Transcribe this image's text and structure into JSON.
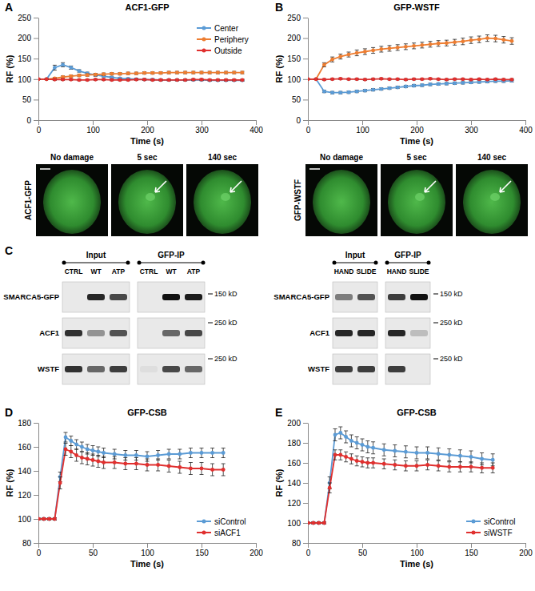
{
  "chart_data": [
    {
      "type": "line",
      "title": "ACF1-GFP",
      "x_label": "Time (s)",
      "y_label": "RF (%)",
      "x": [
        0,
        15,
        30,
        45,
        60,
        75,
        90,
        105,
        120,
        135,
        150,
        165,
        180,
        195,
        210,
        225,
        240,
        255,
        270,
        285,
        300,
        315,
        330,
        345,
        360,
        375
      ],
      "xlim": [
        0,
        400
      ],
      "xticks": [
        0,
        100,
        200,
        300,
        400
      ],
      "ylim": [
        0,
        250
      ],
      "yticks": [
        0,
        50,
        100,
        150,
        200,
        250
      ],
      "legend": "top-right",
      "series": [
        {
          "name": "Center",
          "color": "#5b9bd5",
          "marker": "circle",
          "values": [
            100,
            100,
            128,
            135,
            128,
            120,
            114,
            110,
            107,
            104,
            102,
            101,
            100,
            99,
            99,
            98,
            98,
            98,
            98,
            98,
            98,
            97,
            97,
            97,
            97,
            97
          ],
          "errors": [
            1,
            1,
            6,
            5,
            4,
            3,
            3,
            3,
            2,
            2,
            2,
            2,
            2,
            2,
            2,
            2,
            2,
            2,
            2,
            2,
            2,
            2,
            2,
            2,
            2,
            2
          ]
        },
        {
          "name": "Periphery",
          "color": "#ed7d31",
          "marker": "circle",
          "values": [
            100,
            100,
            102,
            105,
            107,
            109,
            110,
            111,
            112,
            113,
            113,
            114,
            114,
            115,
            115,
            115,
            116,
            116,
            116,
            116,
            116,
            116,
            116,
            116,
            116,
            116
          ],
          "errors": [
            1,
            1,
            2,
            3,
            3,
            3,
            3,
            3,
            3,
            3,
            3,
            3,
            3,
            3,
            3,
            3,
            3,
            3,
            3,
            3,
            3,
            3,
            3,
            3,
            3,
            3
          ]
        },
        {
          "name": "Outside",
          "color": "#e0302f",
          "marker": "circle",
          "values": [
            100,
            100,
            99,
            99,
            99,
            98,
            98,
            99,
            99,
            98,
            98,
            98,
            99,
            99,
            98,
            98,
            98,
            98,
            98,
            99,
            99,
            98,
            98,
            98,
            98,
            98
          ],
          "errors": [
            1,
            1,
            2,
            2,
            2,
            2,
            2,
            2,
            2,
            2,
            2,
            2,
            2,
            2,
            2,
            2,
            2,
            2,
            2,
            2,
            2,
            2,
            2,
            2,
            2,
            2
          ]
        }
      ]
    },
    {
      "type": "line",
      "title": "GFP-WSTF",
      "x_label": "Time (s)",
      "y_label": "RF (%)",
      "x": [
        0,
        15,
        30,
        45,
        60,
        75,
        90,
        105,
        120,
        135,
        150,
        165,
        180,
        195,
        210,
        225,
        240,
        255,
        270,
        285,
        300,
        315,
        330,
        345,
        360,
        375
      ],
      "xlim": [
        0,
        400
      ],
      "xticks": [
        0,
        100,
        200,
        300,
        400
      ],
      "ylim": [
        0,
        250
      ],
      "yticks": [
        0,
        50,
        100,
        150,
        200,
        250
      ],
      "series": [
        {
          "color": "#5b9bd5",
          "marker": "circle",
          "values": [
            100,
            100,
            70,
            67,
            67,
            68,
            70,
            72,
            74,
            76,
            78,
            80,
            82,
            84,
            85,
            87,
            88,
            89,
            90,
            91,
            92,
            93,
            94,
            95,
            95,
            96
          ],
          "errors": [
            1,
            1,
            3,
            3,
            3,
            3,
            3,
            3,
            3,
            3,
            3,
            3,
            3,
            3,
            3,
            3,
            3,
            3,
            3,
            3,
            3,
            3,
            3,
            3,
            3,
            3
          ]
        },
        {
          "color": "#ed7d31",
          "marker": "circle",
          "values": [
            100,
            100,
            135,
            148,
            155,
            160,
            164,
            167,
            170,
            173,
            175,
            177,
            179,
            181,
            183,
            185,
            187,
            188,
            190,
            192,
            195,
            197,
            200,
            199,
            196,
            193
          ],
          "errors": [
            1,
            1,
            5,
            6,
            6,
            6,
            7,
            7,
            7,
            7,
            7,
            7,
            7,
            7,
            7,
            7,
            7,
            7,
            7,
            8,
            8,
            8,
            8,
            8,
            8,
            8
          ]
        },
        {
          "color": "#e0302f",
          "marker": "circle",
          "values": [
            100,
            100,
            99,
            100,
            101,
            100,
            100,
            99,
            100,
            101,
            100,
            100,
            99,
            100,
            100,
            101,
            100,
            99,
            100,
            100,
            99,
            100,
            99,
            100,
            99,
            99
          ],
          "errors": [
            1,
            1,
            2,
            2,
            2,
            2,
            2,
            2,
            2,
            2,
            2,
            2,
            2,
            2,
            2,
            2,
            2,
            2,
            2,
            2,
            2,
            2,
            2,
            2,
            2,
            2
          ]
        }
      ]
    },
    {
      "type": "line",
      "title": "GFP-CSB",
      "x_label": "Time (s)",
      "y_label": "RF (%)",
      "x": [
        0,
        5,
        10,
        15,
        20,
        25,
        30,
        35,
        40,
        45,
        50,
        55,
        60,
        70,
        80,
        90,
        100,
        110,
        120,
        130,
        140,
        150,
        160,
        170
      ],
      "xlim": [
        0,
        200
      ],
      "xticks": [
        0,
        50,
        100,
        150,
        200
      ],
      "ylim": [
        80,
        180
      ],
      "yticks": [
        80,
        100,
        120,
        140,
        160,
        180
      ],
      "legend": "bottom-right",
      "series": [
        {
          "name": "siControl",
          "color": "#5b9bd5",
          "marker": "circle",
          "values": [
            100,
            100,
            100,
            100,
            135,
            168,
            165,
            162,
            160,
            158,
            157,
            156,
            155,
            154,
            153,
            153,
            152,
            153,
            154,
            154,
            155,
            155,
            155,
            155
          ],
          "errors": [
            1,
            1,
            1,
            1,
            4,
            4,
            4,
            4,
            4,
            4,
            4,
            4,
            4,
            4,
            4,
            4,
            4,
            4,
            4,
            4,
            4,
            4,
            4,
            4
          ]
        },
        {
          "name": "siACF1",
          "color": "#e0302f",
          "marker": "circle",
          "values": [
            100,
            100,
            100,
            100,
            130,
            158,
            156,
            153,
            151,
            150,
            149,
            148,
            147,
            147,
            146,
            146,
            145,
            145,
            144,
            143,
            142,
            142,
            141,
            141
          ],
          "errors": [
            1,
            1,
            1,
            1,
            5,
            5,
            5,
            5,
            5,
            5,
            5,
            5,
            5,
            5,
            5,
            5,
            5,
            5,
            5,
            5,
            5,
            5,
            5,
            5
          ]
        }
      ]
    },
    {
      "type": "line",
      "title": "GFP-CSB",
      "x_label": "Time (s)",
      "y_label": "RF (%)",
      "x": [
        0,
        5,
        10,
        15,
        20,
        25,
        30,
        35,
        40,
        45,
        50,
        55,
        60,
        70,
        80,
        90,
        100,
        110,
        120,
        130,
        140,
        150,
        160,
        170
      ],
      "xlim": [
        0,
        200
      ],
      "xticks": [
        0,
        50,
        100,
        150,
        200
      ],
      "ylim": [
        80,
        200
      ],
      "yticks": [
        80,
        100,
        120,
        140,
        160,
        180,
        200
      ],
      "legend": "bottom-right",
      "series": [
        {
          "name": "siControl",
          "color": "#5b9bd5",
          "marker": "circle",
          "values": [
            100,
            100,
            100,
            100,
            140,
            188,
            190,
            186,
            182,
            180,
            178,
            176,
            175,
            173,
            172,
            171,
            170,
            170,
            169,
            168,
            167,
            166,
            164,
            163
          ],
          "errors": [
            1,
            1,
            1,
            1,
            6,
            6,
            6,
            6,
            6,
            6,
            6,
            6,
            6,
            6,
            6,
            6,
            6,
            6,
            6,
            6,
            6,
            6,
            6,
            6
          ]
        },
        {
          "name": "siWSTF",
          "color": "#e0302f",
          "marker": "circle",
          "values": [
            100,
            100,
            100,
            100,
            135,
            168,
            168,
            166,
            164,
            162,
            161,
            160,
            160,
            159,
            158,
            157,
            157,
            158,
            157,
            156,
            156,
            156,
            155,
            155
          ],
          "errors": [
            1,
            1,
            1,
            1,
            5,
            5,
            5,
            5,
            5,
            5,
            5,
            5,
            5,
            5,
            5,
            5,
            5,
            5,
            5,
            5,
            5,
            5,
            5,
            5
          ]
        }
      ]
    }
  ],
  "panel_labels": [
    "A",
    "B",
    "C",
    "D",
    "E"
  ],
  "images": [
    {
      "label": "ACF1-GFP",
      "panels": [
        "No damage",
        "5 sec",
        "140 sec"
      ]
    },
    {
      "label": "GFP-WSTF",
      "panels": [
        "No damage",
        "5 sec",
        "140 sec"
      ]
    }
  ],
  "blots": [
    {
      "groups": [
        "Input",
        "GFP-IP"
      ],
      "lanes": [
        "CTRL",
        "WT",
        "ATP"
      ],
      "rows": [
        "SMARCA5-GFP",
        "ACF1",
        "WSTF"
      ],
      "markers": [
        "150 kD",
        "250 kD",
        "250 kD"
      ],
      "bands": [
        [
          0,
          0.9,
          0.75,
          0,
          1,
          0.95
        ],
        [
          0.85,
          0.4,
          0.7,
          0,
          0.6,
          0.75
        ],
        [
          0.85,
          0.6,
          0.8,
          0.05,
          0.75,
          0.6
        ]
      ]
    },
    {
      "groups": [
        "Input",
        "GFP-IP"
      ],
      "lanes": [
        "HAND",
        "SLIDE"
      ],
      "rows": [
        "SMARCA5-GFP",
        "ACF1",
        "WSTF"
      ],
      "markers": [
        "150 kD",
        "250 kD",
        "250 kD"
      ],
      "bands": [
        [
          0.5,
          0.7,
          0.8,
          1
        ],
        [
          0.9,
          0.9,
          0.9,
          0.2
        ],
        [
          0.8,
          0.8,
          0.8,
          0
        ]
      ]
    }
  ]
}
